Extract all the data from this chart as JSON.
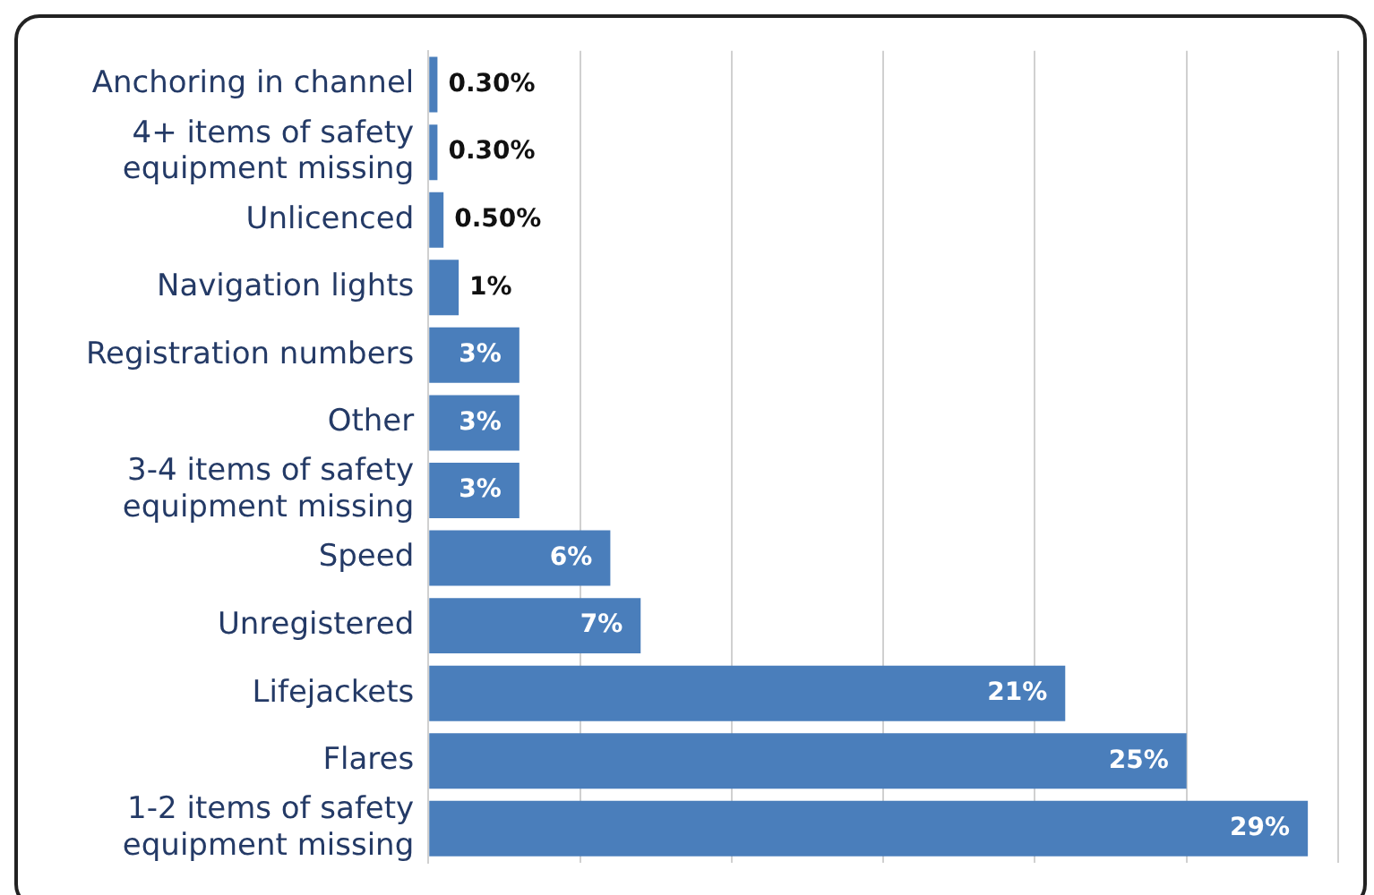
{
  "chart_data": {
    "type": "bar",
    "orientation": "horizontal",
    "categories": [
      "Anchoring in channel",
      "4+ items of safety equipment missing",
      "Unlicenced",
      "Navigation lights",
      "Registration numbers",
      "Other",
      "3-4 items of safety equipment missing",
      "Speed",
      "Unregistered",
      "Lifejackets",
      "Flares",
      "1-2 items of safety equipment missing"
    ],
    "values": [
      0.3,
      0.3,
      0.5,
      1,
      3,
      3,
      3,
      6,
      7,
      21,
      25,
      29
    ],
    "value_labels": [
      "0.30%",
      "0.30%",
      "0.50%",
      "1%",
      "3%",
      "3%",
      "3%",
      "6%",
      "7%",
      "21%",
      "25%",
      "29%"
    ],
    "color": "#4a7ebb",
    "xlim": [
      0,
      30
    ],
    "xticks": [
      {
        "value": 0,
        "label": null
      },
      {
        "value": 5,
        "label": null
      },
      {
        "value": 10,
        "label": null
      },
      {
        "value": 15,
        "label": null
      },
      {
        "value": 20,
        "label": null
      },
      {
        "value": 25,
        "label": null
      },
      {
        "value": 30,
        "label": null
      }
    ],
    "grid": "x",
    "tick_labels": "y",
    "legend": false
  }
}
